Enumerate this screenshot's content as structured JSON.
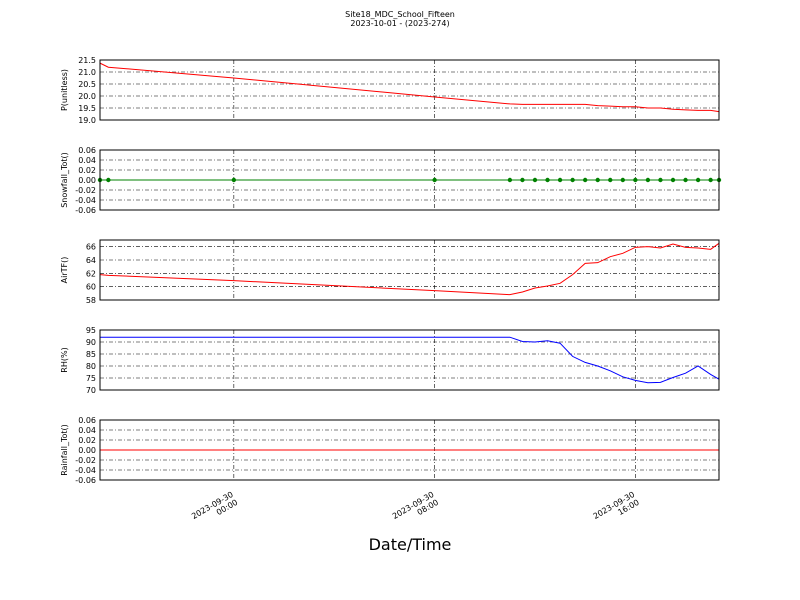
{
  "title": "Site18_MDC_School_Fifteen",
  "subtitle": "2023-10-01 - (2023-274)",
  "x_label": "Date/Time",
  "chart_data": [
    {
      "type": "line",
      "y_label": "P(unitless)",
      "x": [
        "2023-09-29 18:40",
        "2023-09-29 19:00",
        "2023-09-30 00:00",
        "2023-09-30 08:00",
        "2023-09-30 11:00",
        "2023-09-30 11:30",
        "2023-09-30 12:00",
        "2023-09-30 12:30",
        "2023-09-30 13:00",
        "2023-09-30 13:30",
        "2023-09-30 14:00",
        "2023-09-30 14:30",
        "2023-09-30 15:00",
        "2023-09-30 15:30",
        "2023-09-30 16:00",
        "2023-09-30 16:30",
        "2023-09-30 17:00",
        "2023-09-30 17:30",
        "2023-09-30 18:00",
        "2023-09-30 18:30",
        "2023-09-30 19:00",
        "2023-09-30 19:20"
      ],
      "series": [
        {
          "color": "#ff0000",
          "values": [
            21.37,
            21.2,
            20.75,
            19.96,
            19.67,
            19.65,
            19.65,
            19.65,
            19.65,
            19.65,
            19.65,
            19.6,
            19.58,
            19.55,
            19.55,
            19.5,
            19.5,
            19.45,
            19.42,
            19.4,
            19.4,
            19.35
          ]
        }
      ],
      "xlim": [
        "2023-09-29 18:40",
        "2023-09-30 19:20"
      ],
      "xticks": [
        "2023-09-30 00:00",
        "2023-09-30 08:00",
        "2023-09-30 16:00"
      ],
      "ylim": [
        19,
        21.5
      ],
      "yticks": [
        {
          "value": 19,
          "label": "19.0"
        },
        19.5,
        {
          "value": 20,
          "label": "20.0"
        },
        20.5,
        {
          "value": 21,
          "label": "21.0"
        },
        21.5
      ],
      "grid": true
    },
    {
      "type": "line",
      "y_label": "Snowfall_Tot()",
      "x": [
        "2023-09-29 18:40",
        "2023-09-29 19:00",
        "2023-09-30 00:00",
        "2023-09-30 08:00",
        "2023-09-30 11:00",
        "2023-09-30 11:30",
        "2023-09-30 12:00",
        "2023-09-30 12:30",
        "2023-09-30 13:00",
        "2023-09-30 13:30",
        "2023-09-30 14:00",
        "2023-09-30 14:30",
        "2023-09-30 15:00",
        "2023-09-30 15:30",
        "2023-09-30 16:00",
        "2023-09-30 16:30",
        "2023-09-30 17:00",
        "2023-09-30 17:30",
        "2023-09-30 18:00",
        "2023-09-30 18:30",
        "2023-09-30 19:00",
        "2023-09-30 19:20"
      ],
      "series": [
        {
          "color": "#008000",
          "marker": "o",
          "values": [
            0,
            0,
            0,
            0,
            0,
            0,
            0,
            0,
            0,
            0,
            0,
            0,
            0,
            0,
            0,
            0,
            0,
            0,
            0,
            0,
            0,
            0
          ]
        }
      ],
      "xlim": [
        "2023-09-29 18:40",
        "2023-09-30 19:20"
      ],
      "xticks": [
        "2023-09-30 00:00",
        "2023-09-30 08:00",
        "2023-09-30 16:00"
      ],
      "ylim": [
        -0.06,
        0.06
      ],
      "yticks": [
        -0.06,
        -0.04,
        -0.02,
        {
          "value": 0,
          "label": "0.00"
        },
        0.02,
        0.04,
        0.06
      ],
      "grid": true
    },
    {
      "type": "line",
      "y_label": "AirTF()",
      "x": [
        "2023-09-29 18:40",
        "2023-09-29 19:00",
        "2023-09-30 00:00",
        "2023-09-30 08:00",
        "2023-09-30 11:00",
        "2023-09-30 11:30",
        "2023-09-30 12:00",
        "2023-09-30 12:30",
        "2023-09-30 13:00",
        "2023-09-30 13:30",
        "2023-09-30 14:00",
        "2023-09-30 14:30",
        "2023-09-30 15:00",
        "2023-09-30 15:30",
        "2023-09-30 16:00",
        "2023-09-30 16:30",
        "2023-09-30 17:00",
        "2023-09-30 17:30",
        "2023-09-30 18:00",
        "2023-09-30 18:30",
        "2023-09-30 19:00",
        "2023-09-30 19:20"
      ],
      "series": [
        {
          "color": "#ff0000",
          "values": [
            61.8,
            61.7,
            60.9,
            59.4,
            58.8,
            59.2,
            59.8,
            60.1,
            60.5,
            61.8,
            63.5,
            63.6,
            64.5,
            65.0,
            65.9,
            66.0,
            65.8,
            66.4,
            65.9,
            65.8,
            65.6,
            66.5
          ]
        }
      ],
      "xlim": [
        "2023-09-29 18:40",
        "2023-09-30 19:20"
      ],
      "xticks": [
        "2023-09-30 00:00",
        "2023-09-30 08:00",
        "2023-09-30 16:00"
      ],
      "ylim": [
        58,
        67
      ],
      "yticks": [
        58,
        60,
        62,
        64,
        66
      ],
      "grid": true
    },
    {
      "type": "line",
      "y_label": "RH(%)",
      "x": [
        "2023-09-29 18:40",
        "2023-09-29 19:00",
        "2023-09-30 00:00",
        "2023-09-30 08:00",
        "2023-09-30 11:00",
        "2023-09-30 11:30",
        "2023-09-30 12:00",
        "2023-09-30 12:30",
        "2023-09-30 13:00",
        "2023-09-30 13:30",
        "2023-09-30 14:00",
        "2023-09-30 14:30",
        "2023-09-30 15:00",
        "2023-09-30 15:30",
        "2023-09-30 16:00",
        "2023-09-30 16:30",
        "2023-09-30 17:00",
        "2023-09-30 17:30",
        "2023-09-30 18:00",
        "2023-09-30 18:30",
        "2023-09-30 19:00",
        "2023-09-30 19:20"
      ],
      "series": [
        {
          "color": "#0000ff",
          "values": [
            92,
            92,
            92,
            92,
            92,
            90.2,
            90,
            90.5,
            89.5,
            84,
            81.5,
            80,
            78,
            75.5,
            74,
            73,
            73.2,
            75.2,
            77,
            80,
            76.5,
            74.5
          ]
        }
      ],
      "xlim": [
        "2023-09-29 18:40",
        "2023-09-30 19:20"
      ],
      "xticks": [
        "2023-09-30 00:00",
        "2023-09-30 08:00",
        "2023-09-30 16:00"
      ],
      "ylim": [
        70,
        95
      ],
      "yticks": [
        70,
        75,
        80,
        85,
        90,
        95
      ],
      "grid": true
    },
    {
      "type": "line",
      "y_label": "Rainfall_Tot()",
      "x": [
        "2023-09-29 18:40",
        "2023-09-29 19:00",
        "2023-09-30 00:00",
        "2023-09-30 08:00",
        "2023-09-30 11:00",
        "2023-09-30 11:30",
        "2023-09-30 12:00",
        "2023-09-30 12:30",
        "2023-09-30 13:00",
        "2023-09-30 13:30",
        "2023-09-30 14:00",
        "2023-09-30 14:30",
        "2023-09-30 15:00",
        "2023-09-30 15:30",
        "2023-09-30 16:00",
        "2023-09-30 16:30",
        "2023-09-30 17:00",
        "2023-09-30 17:30",
        "2023-09-30 18:00",
        "2023-09-30 18:30",
        "2023-09-30 19:00",
        "2023-09-30 19:20"
      ],
      "series": [
        {
          "color": "#ff0000",
          "values": [
            0,
            0,
            0,
            0,
            0,
            0,
            0,
            0,
            0,
            0,
            0,
            0,
            0,
            0,
            0,
            0,
            0,
            0,
            0,
            0,
            0,
            0
          ]
        }
      ],
      "xlim": [
        "2023-09-29 18:40",
        "2023-09-30 19:20"
      ],
      "xticks": [
        "2023-09-30 00:00",
        "2023-09-30 08:00",
        "2023-09-30 16:00"
      ],
      "ylim": [
        -0.06,
        0.06
      ],
      "yticks": [
        -0.06,
        -0.04,
        -0.02,
        {
          "value": 0,
          "label": "0.00"
        },
        0.02,
        0.04,
        0.06
      ],
      "grid": true
    }
  ]
}
